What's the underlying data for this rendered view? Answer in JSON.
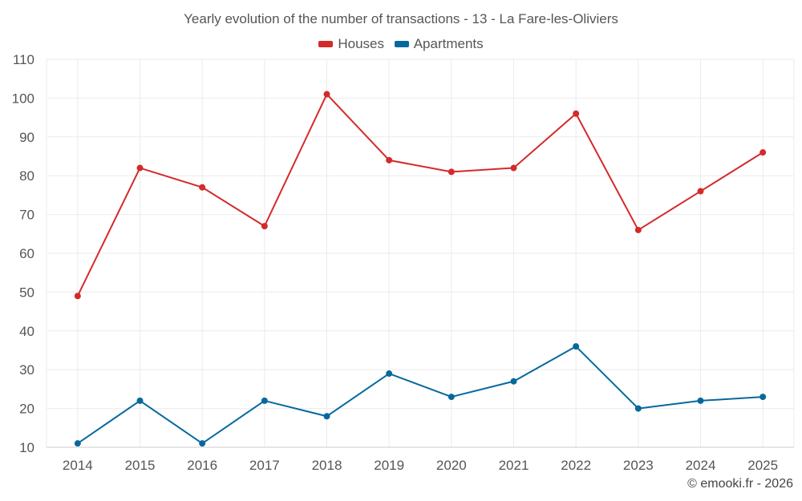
{
  "chart_data": {
    "type": "line",
    "title": "Yearly evolution of the number of transactions - 13 - La Fare-les-Oliviers",
    "categories": [
      "2014",
      "2015",
      "2016",
      "2017",
      "2018",
      "2019",
      "2020",
      "2021",
      "2022",
      "2023",
      "2024",
      "2025"
    ],
    "series": [
      {
        "name": "Houses",
        "color": "#d42a2a",
        "values": [
          49,
          82,
          77,
          67,
          101,
          84,
          81,
          82,
          96,
          66,
          76,
          86
        ]
      },
      {
        "name": "Apartments",
        "color": "#06699c",
        "values": [
          11,
          22,
          11,
          22,
          18,
          29,
          23,
          27,
          36,
          20,
          22,
          23
        ]
      }
    ],
    "ylim": [
      10,
      110
    ],
    "yticks": [
      10,
      20,
      30,
      40,
      50,
      60,
      70,
      80,
      90,
      100,
      110
    ],
    "xlabel": "",
    "ylabel": "",
    "grid": true,
    "legend_position": "top-center"
  },
  "credit": "© emooki.fr - 2026"
}
